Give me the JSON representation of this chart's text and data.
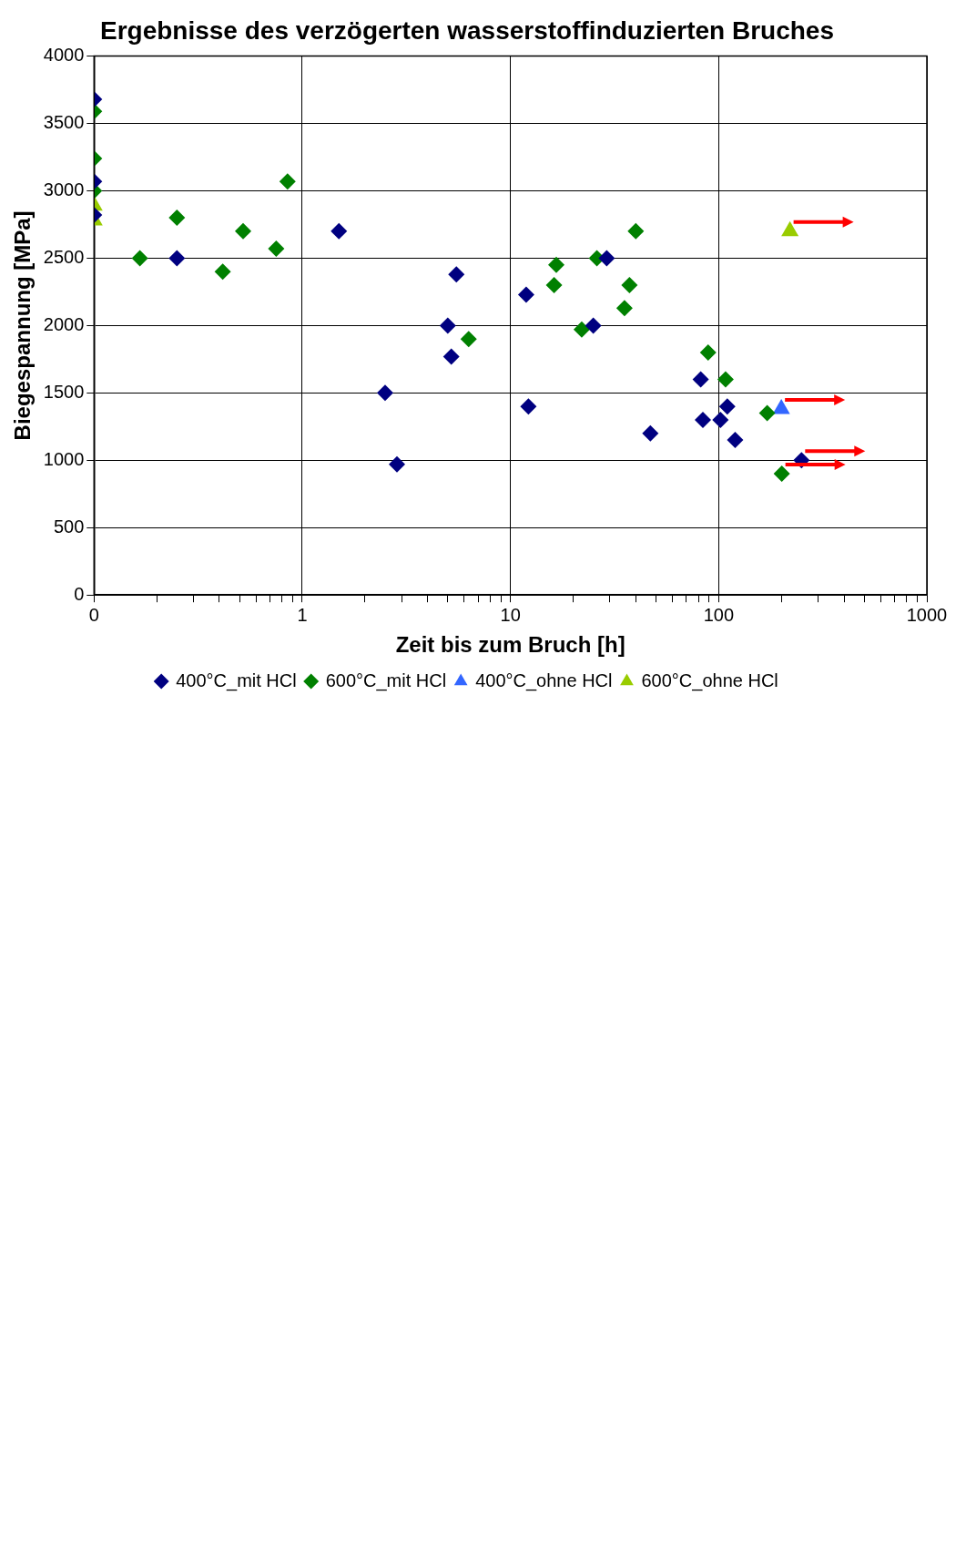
{
  "chart_data": {
    "type": "scatter",
    "title": "Ergebnisse des verzögerten wasserstoffinduzierten Bruches",
    "xlabel": "Zeit bis zum Bruch [h]",
    "ylabel": "Biegespannung [MPa]",
    "log": "x",
    "grid": true,
    "legend": "bottom",
    "xlim": [
      0.1,
      1000
    ],
    "xticks": [
      {
        "value": 0.1,
        "label": "0"
      },
      {
        "value": 0.2,
        "label": null
      },
      {
        "value": 0.3,
        "label": null
      },
      {
        "value": 0.4,
        "label": null
      },
      {
        "value": 0.5,
        "label": null
      },
      {
        "value": 0.6,
        "label": null
      },
      {
        "value": 0.7,
        "label": null
      },
      {
        "value": 0.8,
        "label": null
      },
      {
        "value": 0.9,
        "label": null
      },
      1,
      {
        "value": 2,
        "label": null
      },
      {
        "value": 3,
        "label": null
      },
      {
        "value": 4,
        "label": null
      },
      {
        "value": 5,
        "label": null
      },
      {
        "value": 6,
        "label": null
      },
      {
        "value": 7,
        "label": null
      },
      {
        "value": 8,
        "label": null
      },
      {
        "value": 9,
        "label": null
      },
      10,
      {
        "value": 20,
        "label": null
      },
      {
        "value": 30,
        "label": null
      },
      {
        "value": 40,
        "label": null
      },
      {
        "value": 50,
        "label": null
      },
      {
        "value": 60,
        "label": null
      },
      {
        "value": 70,
        "label": null
      },
      {
        "value": 80,
        "label": null
      },
      {
        "value": 90,
        "label": null
      },
      100,
      {
        "value": 200,
        "label": null
      },
      {
        "value": 300,
        "label": null
      },
      {
        "value": 400,
        "label": null
      },
      {
        "value": 500,
        "label": null
      },
      {
        "value": 600,
        "label": null
      },
      {
        "value": 700,
        "label": null
      },
      {
        "value": 800,
        "label": null
      },
      {
        "value": 900,
        "label": null
      },
      1000
    ],
    "ylim": [
      0,
      4000
    ],
    "yticks": [
      0,
      500,
      1000,
      1500,
      2000,
      2500,
      3000,
      3500,
      4000
    ],
    "series": [
      {
        "name": "400°C_mit HCl",
        "color": "#000080",
        "marker": "diamond",
        "x": [
          0.1,
          0.1,
          0.1,
          0.25,
          1.5,
          5.5,
          5.0,
          5.2,
          2.5,
          2.85,
          11.9,
          12.2,
          29,
          25,
          82,
          47,
          84,
          110,
          102,
          120,
          250
        ],
        "values": [
          3680,
          3070,
          2820,
          2500,
          2700,
          2380,
          2000,
          1770,
          1500,
          970,
          2230,
          1400,
          2500,
          2000,
          1600,
          1200,
          1300,
          1400,
          1300,
          1150,
          1000
        ]
      },
      {
        "name": "600°C_mit HCl",
        "color": "#008000",
        "marker": "diamond",
        "x": [
          0.1,
          0.1,
          0.1,
          0.166,
          0.25,
          0.415,
          0.52,
          0.75,
          0.85,
          6.3,
          16.6,
          16.2,
          26,
          22,
          40,
          37.3,
          35.3,
          89,
          108,
          171,
          201
        ],
        "values": [
          3590,
          3240,
          3000,
          2500,
          2800,
          2400,
          2700,
          2570,
          3070,
          1900,
          2450,
          2300,
          2500,
          1970,
          2700,
          2300,
          2130,
          1800,
          1600,
          1350,
          900
        ]
      },
      {
        "name": "400°C_ohne HCl",
        "color": "#3366ff",
        "marker": "triangle",
        "x": [
          200
        ],
        "values": [
          1380
        ]
      },
      {
        "name": "600°C_ohne HCl",
        "color": "#99cc00",
        "marker": "triangle",
        "x": [
          0.1,
          0.1,
          220
        ],
        "values": [
          2890,
          2780,
          2700
        ]
      }
    ]
  }
}
